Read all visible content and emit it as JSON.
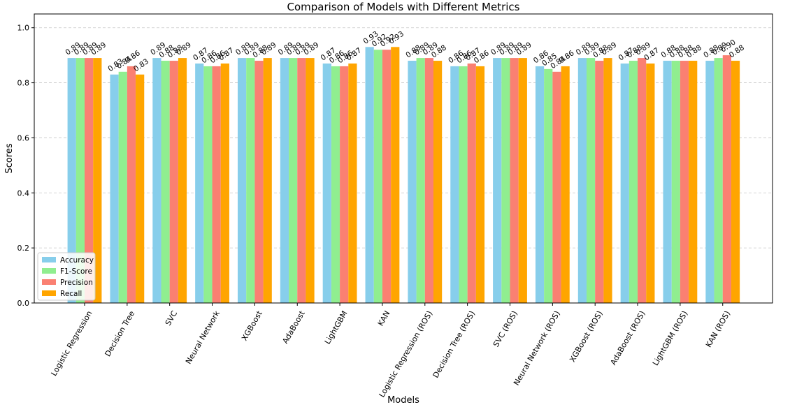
{
  "chart_data": {
    "type": "bar",
    "title": "Comparison of Models with Different Metrics",
    "xlabel": "Models",
    "ylabel": "Scores",
    "ylim": [
      0,
      1.05
    ],
    "yticks": [
      "0.0",
      "0.2",
      "0.4",
      "0.6",
      "0.8",
      "1.0"
    ],
    "grid": "y-dashed",
    "legend_position": "lower-left",
    "categories": [
      "Logistic Regression",
      "Decision Tree",
      "SVC",
      "Neural Network",
      "XGBoost",
      "AdaBoost",
      "LightGBM",
      "KAN",
      "Logistic Regression (ROS)",
      "Decision Tree (ROS)",
      "SVC (ROS)",
      "Neural Network (ROS)",
      "XGBoost (ROS)",
      "AdaBoost (ROS)",
      "LightGBM (ROS)",
      "KAN (ROS)"
    ],
    "series": [
      {
        "name": "Accuracy",
        "color": "#87ceeb",
        "values": [
          0.89,
          0.83,
          0.89,
          0.87,
          0.89,
          0.89,
          0.87,
          0.93,
          0.88,
          0.86,
          0.89,
          0.86,
          0.89,
          0.87,
          0.88,
          0.88
        ],
        "labels": [
          "0.89",
          "0.83",
          "0.89",
          "0.87",
          "0.89",
          "0.89",
          "0.87",
          "0.93",
          "0.88",
          "0.86",
          "0.89",
          "0.86",
          "0.89",
          "0.87",
          "0.88",
          "0.88"
        ]
      },
      {
        "name": "F1-Score",
        "color": "#90ee90",
        "values": [
          0.89,
          0.84,
          0.88,
          0.86,
          0.89,
          0.89,
          0.86,
          0.92,
          0.89,
          0.86,
          0.89,
          0.85,
          0.89,
          0.88,
          0.88,
          0.89
        ],
        "labels": [
          "0.89",
          "0.84",
          "0.88",
          "0.86",
          "0.89",
          "0.89",
          "0.86",
          "0.92",
          "0.89",
          "0.86",
          "0.89",
          "0.85",
          "0.89",
          "0.88",
          "0.88",
          "0.89"
        ]
      },
      {
        "name": "Precision",
        "color": "#fa8072",
        "values": [
          0.89,
          0.86,
          0.88,
          0.86,
          0.88,
          0.89,
          0.86,
          0.92,
          0.89,
          0.87,
          0.89,
          0.84,
          0.88,
          0.89,
          0.88,
          0.9
        ],
        "labels": [
          "0.89",
          "0.86",
          "0.88",
          "0.86",
          "0.88",
          "0.89",
          "0.86",
          "0.92",
          "0.89",
          "0.87",
          "0.89",
          "0.84",
          "0.88",
          "0.89",
          "0.88",
          "0.90"
        ]
      },
      {
        "name": "Recall",
        "color": "#ffa500",
        "values": [
          0.89,
          0.83,
          0.89,
          0.87,
          0.89,
          0.89,
          0.87,
          0.93,
          0.88,
          0.86,
          0.89,
          0.86,
          0.89,
          0.87,
          0.88,
          0.88
        ],
        "labels": [
          "0.89",
          "0.83",
          "0.89",
          "0.87",
          "0.89",
          "0.89",
          "0.87",
          "0.93",
          "0.88",
          "0.86",
          "0.89",
          "0.86",
          "0.89",
          "0.87",
          "0.88",
          "0.88"
        ]
      }
    ]
  }
}
